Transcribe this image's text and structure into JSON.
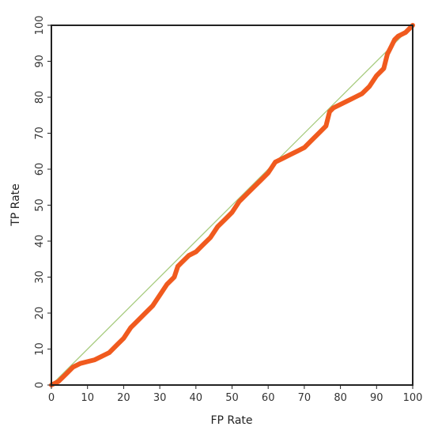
{
  "chart_data": {
    "type": "line",
    "title": "",
    "xlabel": "FP Rate",
    "ylabel": "TP Rate",
    "xlim": [
      0,
      100
    ],
    "ylim": [
      0,
      100
    ],
    "grid": false,
    "x_ticks": [
      "0",
      "10",
      "20",
      "30",
      "40",
      "50",
      "60",
      "70",
      "80",
      "90",
      "100"
    ],
    "y_ticks": [
      "0",
      "10",
      "20",
      "30",
      "40",
      "50",
      "60",
      "70",
      "80",
      "90",
      "100"
    ],
    "series": [
      {
        "role": "roc-curve",
        "color": "#f05a1e",
        "x": [
          0,
          2,
          4,
          6,
          8,
          10,
          12,
          14,
          16,
          18,
          20,
          22,
          24,
          26,
          28,
          30,
          32,
          34,
          35,
          36,
          38,
          40,
          42,
          44,
          46,
          48,
          50,
          52,
          54,
          56,
          58,
          60,
          62,
          64,
          66,
          68,
          70,
          72,
          74,
          76,
          77,
          78,
          80,
          82,
          84,
          86,
          88,
          90,
          91,
          92,
          93,
          94,
          95,
          96,
          98,
          100
        ],
        "y": [
          0,
          1,
          3,
          5,
          6,
          6.5,
          7,
          8,
          9,
          11,
          13,
          16,
          18,
          20,
          22,
          25,
          28,
          30,
          33,
          34,
          36,
          37,
          39,
          41,
          44,
          46,
          48,
          51,
          53,
          55,
          57,
          59,
          62,
          63,
          64,
          65,
          66,
          68,
          70,
          72,
          76,
          77,
          78,
          79,
          80,
          81,
          83,
          86,
          87,
          88,
          92,
          94,
          96,
          97,
          98,
          100
        ]
      },
      {
        "role": "diagonal-reference",
        "color": "#a8cc80",
        "x": [
          0,
          100
        ],
        "y": [
          0,
          100
        ]
      }
    ]
  }
}
